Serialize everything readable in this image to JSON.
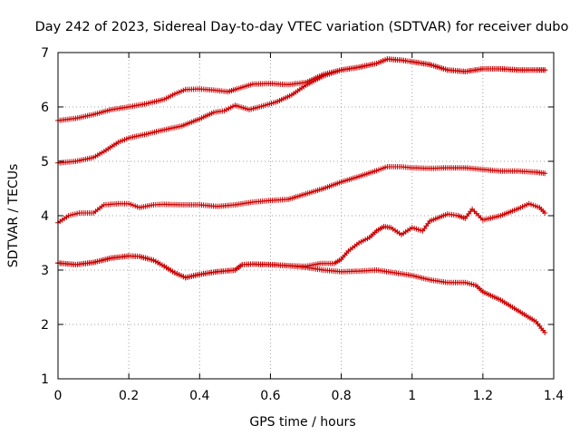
{
  "chart_data": {
    "type": "line",
    "title": "Day 242 of 2023, Sidereal Day-to-day VTEC variation (SDTVAR) for receiver dubo",
    "xlabel": "GPS time / hours",
    "ylabel": "SDTVAR / TECUs",
    "xlim": [
      0,
      1.4
    ],
    "ylim": [
      1,
      7
    ],
    "xticks": [
      0,
      0.2,
      0.4,
      0.6,
      0.8,
      1,
      1.2,
      1.4
    ],
    "xtick_labels": [
      "0",
      "0.2",
      "0.4",
      "0.6",
      "0.8",
      "1",
      "1.2",
      "1.4"
    ],
    "yticks": [
      1,
      2,
      3,
      4,
      5,
      6,
      7
    ],
    "ytick_labels": [
      "1",
      "2",
      "3",
      "4",
      "5",
      "6",
      "7"
    ],
    "grid": true,
    "marker": "plus",
    "color": "#cc0000",
    "series": [
      {
        "name": "trace-1",
        "x": [
          0.0,
          0.05,
          0.1,
          0.15,
          0.2,
          0.25,
          0.3,
          0.33,
          0.36,
          0.4,
          0.44,
          0.48,
          0.5,
          0.55,
          0.6,
          0.65,
          0.7,
          0.75,
          0.8,
          0.85,
          0.9,
          0.93,
          0.97,
          1.0,
          1.05,
          1.1,
          1.15,
          1.2,
          1.25,
          1.3,
          1.35,
          1.375
        ],
        "y": [
          5.75,
          5.79,
          5.86,
          5.95,
          6.0,
          6.06,
          6.14,
          6.24,
          6.32,
          6.33,
          6.31,
          6.28,
          6.32,
          6.42,
          6.43,
          6.41,
          6.45,
          6.6,
          6.68,
          6.73,
          6.8,
          6.88,
          6.86,
          6.83,
          6.78,
          6.68,
          6.65,
          6.7,
          6.7,
          6.68,
          6.68,
          6.68
        ]
      },
      {
        "name": "trace-2",
        "x": [
          0.0,
          0.05,
          0.1,
          0.13,
          0.17,
          0.2,
          0.25,
          0.3,
          0.35,
          0.4,
          0.44,
          0.47,
          0.5,
          0.54,
          0.58,
          0.62,
          0.66,
          0.7,
          0.75,
          0.8,
          0.85,
          0.9,
          0.93,
          0.97,
          1.0,
          1.05,
          1.1,
          1.15,
          1.2,
          1.25,
          1.3,
          1.35,
          1.375
        ],
        "y": [
          4.97,
          5.0,
          5.07,
          5.18,
          5.35,
          5.43,
          5.5,
          5.58,
          5.65,
          5.78,
          5.9,
          5.93,
          6.03,
          5.95,
          6.02,
          6.1,
          6.22,
          6.4,
          6.57,
          6.68,
          6.73,
          6.8,
          6.88,
          6.86,
          6.83,
          6.78,
          6.68,
          6.65,
          6.7,
          6.7,
          6.68,
          6.68,
          6.68
        ]
      },
      {
        "name": "trace-3",
        "x": [
          0.0,
          0.03,
          0.06,
          0.1,
          0.13,
          0.17,
          0.2,
          0.23,
          0.27,
          0.3,
          0.35,
          0.4,
          0.45,
          0.5,
          0.55,
          0.6,
          0.65,
          0.7,
          0.75,
          0.8,
          0.85,
          0.9,
          0.93,
          0.97,
          1.0,
          1.05,
          1.1,
          1.15,
          1.2,
          1.25,
          1.3,
          1.35,
          1.375
        ],
        "y": [
          3.87,
          4.0,
          4.05,
          4.05,
          4.2,
          4.22,
          4.22,
          4.15,
          4.2,
          4.21,
          4.2,
          4.2,
          4.17,
          4.2,
          4.25,
          4.28,
          4.3,
          4.4,
          4.5,
          4.62,
          4.72,
          4.83,
          4.9,
          4.9,
          4.88,
          4.87,
          4.88,
          4.88,
          4.85,
          4.82,
          4.82,
          4.8,
          4.78
        ]
      },
      {
        "name": "trace-4",
        "x": [
          0.0,
          0.05,
          0.1,
          0.15,
          0.2,
          0.23,
          0.27,
          0.3,
          0.33,
          0.36,
          0.4,
          0.45,
          0.5,
          0.52,
          0.55,
          0.6,
          0.65,
          0.7,
          0.74,
          0.78,
          0.8,
          0.82,
          0.85,
          0.88,
          0.9,
          0.92,
          0.94,
          0.97,
          1.0,
          1.03,
          1.05,
          1.1,
          1.13,
          1.15,
          1.17,
          1.2,
          1.25,
          1.3,
          1.33,
          1.36,
          1.375
        ],
        "y": [
          3.13,
          3.1,
          3.14,
          3.22,
          3.26,
          3.25,
          3.18,
          3.07,
          2.95,
          2.86,
          2.92,
          2.97,
          3.0,
          3.1,
          3.11,
          3.1,
          3.08,
          3.07,
          3.12,
          3.12,
          3.2,
          3.35,
          3.5,
          3.6,
          3.72,
          3.8,
          3.78,
          3.65,
          3.78,
          3.72,
          3.9,
          4.03,
          4.0,
          3.95,
          4.12,
          3.92,
          4.0,
          4.13,
          4.22,
          4.15,
          4.05
        ]
      },
      {
        "name": "trace-5",
        "x": [
          0.0,
          0.05,
          0.1,
          0.15,
          0.2,
          0.23,
          0.27,
          0.3,
          0.33,
          0.36,
          0.4,
          0.45,
          0.5,
          0.52,
          0.55,
          0.6,
          0.65,
          0.7,
          0.75,
          0.8,
          0.85,
          0.9,
          0.95,
          1.0,
          1.05,
          1.1,
          1.15,
          1.18,
          1.2,
          1.25,
          1.3,
          1.35,
          1.375
        ],
        "y": [
          3.13,
          3.1,
          3.14,
          3.22,
          3.26,
          3.25,
          3.18,
          3.07,
          2.95,
          2.86,
          2.92,
          2.97,
          3.0,
          3.1,
          3.11,
          3.1,
          3.08,
          3.05,
          3.0,
          2.97,
          2.98,
          3.0,
          2.95,
          2.9,
          2.82,
          2.77,
          2.77,
          2.72,
          2.6,
          2.45,
          2.25,
          2.05,
          1.85
        ]
      }
    ]
  }
}
